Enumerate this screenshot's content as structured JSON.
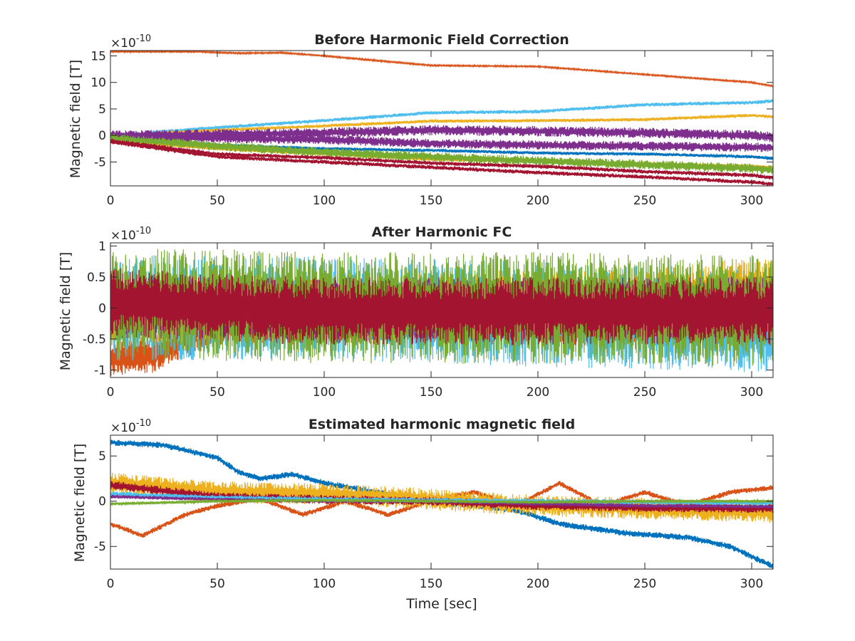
{
  "figure": {
    "colors": [
      "#0072BD",
      "#D95319",
      "#EDB120",
      "#7E2F8E",
      "#77AC30",
      "#4DBEEE",
      "#A2142F"
    ]
  },
  "chart_data": [
    {
      "type": "line",
      "title": "Before Harmonic Field Correction",
      "xlabel": "",
      "ylabel": "Magnetic field [T]",
      "exponent_label": "×10",
      "exponent_power": "-10",
      "xlim": [
        0,
        310
      ],
      "ylim": [
        -9.5,
        16
      ],
      "xticks": [
        0,
        50,
        100,
        150,
        200,
        250,
        300
      ],
      "yticks": [
        -5,
        0,
        5,
        10,
        15
      ],
      "grid": false,
      "series": [
        {
          "color": "#D95319",
          "noise": 0.15,
          "x": [
            0,
            40,
            60,
            80,
            100,
            150,
            200,
            250,
            300,
            310
          ],
          "y": [
            15.8,
            15.8,
            15.5,
            15.6,
            15.0,
            13.2,
            13.0,
            11.5,
            10.0,
            9.3
          ]
        },
        {
          "color": "#4DBEEE",
          "noise": 0.35,
          "x": [
            0,
            50,
            100,
            150,
            200,
            250,
            300,
            310
          ],
          "y": [
            0,
            1.5,
            2.8,
            4.3,
            4.5,
            5.8,
            6.2,
            6.5
          ]
        },
        {
          "color": "#EDB120",
          "noise": 0.3,
          "x": [
            0,
            50,
            100,
            150,
            200,
            250,
            300,
            310
          ],
          "y": [
            0,
            1.0,
            1.8,
            2.7,
            2.8,
            3.0,
            3.8,
            3.5
          ]
        },
        {
          "color": "#7E2F8E",
          "noise": 1.0,
          "x": [
            0,
            50,
            100,
            150,
            200,
            250,
            300,
            310
          ],
          "y": [
            0,
            0.2,
            0.5,
            1.0,
            0.8,
            0.5,
            0.0,
            -0.3
          ]
        },
        {
          "color": "#7E2F8E",
          "noise": 0.9,
          "x": [
            0,
            50,
            100,
            150,
            200,
            250,
            300,
            310
          ],
          "y": [
            -0.5,
            -0.5,
            -0.8,
            -1.5,
            -1.8,
            -2.0,
            -2.2,
            -2.3
          ]
        },
        {
          "color": "#0072BD",
          "noise": 0.3,
          "x": [
            0,
            50,
            100,
            150,
            200,
            250,
            300,
            310
          ],
          "y": [
            -0.5,
            -1.8,
            -2.5,
            -2.8,
            -3.3,
            -3.5,
            -4.0,
            -4.3
          ]
        },
        {
          "color": "#EDB120",
          "noise": 0.3,
          "x": [
            0,
            50,
            100,
            150,
            200,
            250,
            300,
            310
          ],
          "y": [
            -1.0,
            -2.5,
            -3.5,
            -4.5,
            -4.8,
            -5.3,
            -5.8,
            -6.0
          ]
        },
        {
          "color": "#77AC30",
          "noise": 0.9,
          "x": [
            0,
            50,
            100,
            150,
            200,
            250,
            300,
            310
          ],
          "y": [
            -0.5,
            -2.0,
            -3.2,
            -4.0,
            -4.8,
            -5.5,
            -6.2,
            -6.5
          ]
        },
        {
          "color": "#A2142F",
          "noise": 0.4,
          "x": [
            0,
            50,
            100,
            150,
            200,
            250,
            300,
            310
          ],
          "y": [
            -1.0,
            -3.5,
            -4.2,
            -5.2,
            -5.8,
            -6.8,
            -7.5,
            -8.0
          ]
        },
        {
          "color": "#A2142F",
          "noise": 0.4,
          "x": [
            0,
            50,
            100,
            150,
            200,
            250,
            300,
            310
          ],
          "y": [
            -1.2,
            -4.0,
            -5.0,
            -6.0,
            -7.0,
            -7.8,
            -8.8,
            -9.2
          ]
        }
      ]
    },
    {
      "type": "line",
      "title": "After Harmonic FC",
      "xlabel": "",
      "ylabel": "Magnetic field [T]",
      "exponent_label": "×10",
      "exponent_power": "-10",
      "xlim": [
        0,
        310
      ],
      "ylim": [
        -1.12,
        1.05
      ],
      "xticks": [
        0,
        50,
        100,
        150,
        200,
        250,
        300
      ],
      "yticks": [
        -1,
        -0.5,
        0,
        0.5,
        1
      ],
      "ytick_labels": [
        "-1",
        "-0.5",
        "0",
        "0.5",
        "1"
      ],
      "grid": false,
      "series": [
        {
          "color": "#D95319",
          "noise": 0.3,
          "x": [
            0,
            20,
            35,
            50,
            100,
            200,
            310
          ],
          "y": [
            -0.8,
            -0.75,
            -0.5,
            -0.3,
            -0.3,
            -0.3,
            -0.3
          ]
        },
        {
          "color": "#4DBEEE",
          "noise": 0.85,
          "x": [
            0,
            100,
            200,
            310
          ],
          "y": [
            0,
            0,
            -0.1,
            -0.2
          ]
        },
        {
          "color": "#EDB120",
          "noise": 0.55,
          "x": [
            0,
            100,
            250,
            310
          ],
          "y": [
            0,
            0,
            0.1,
            0.3
          ]
        },
        {
          "color": "#7E2F8E",
          "noise": 0.5,
          "x": [
            0,
            100,
            250,
            310
          ],
          "y": [
            0,
            0,
            0,
            0.05
          ]
        },
        {
          "color": "#77AC30",
          "noise": 0.9,
          "x": [
            0,
            50,
            100,
            200,
            310
          ],
          "y": [
            0.05,
            0.05,
            0,
            0,
            -0.05
          ]
        },
        {
          "color": "#A2142F",
          "noise": 0.55,
          "x": [
            0,
            50,
            100,
            200,
            310
          ],
          "y": [
            0.1,
            0.0,
            -0.05,
            -0.05,
            -0.05
          ]
        }
      ]
    },
    {
      "type": "line",
      "title": "Estimated harmonic magnetic field",
      "xlabel": "Time [sec]",
      "ylabel": "Magnetic field [T]",
      "exponent_label": "×10",
      "exponent_power": "-10",
      "xlim": [
        0,
        310
      ],
      "ylim": [
        -7.5,
        7.3
      ],
      "xticks": [
        0,
        50,
        100,
        150,
        200,
        250,
        300
      ],
      "yticks": [
        -5,
        0,
        5
      ],
      "grid": false,
      "series": [
        {
          "color": "#0072BD",
          "noise": 0.35,
          "x": [
            0,
            25,
            50,
            60,
            70,
            85,
            100,
            150,
            190,
            210,
            240,
            270,
            290,
            310
          ],
          "y": [
            6.5,
            6.2,
            4.8,
            3.2,
            2.5,
            3.0,
            2.0,
            0.0,
            -1.0,
            -2.5,
            -3.5,
            -4.0,
            -5.0,
            -7.2
          ]
        },
        {
          "color": "#D95319",
          "noise": 0.3,
          "x": [
            0,
            15,
            35,
            50,
            70,
            90,
            110,
            130,
            150,
            170,
            190,
            210,
            230,
            250,
            270,
            290,
            310
          ],
          "y": [
            -2.5,
            -3.8,
            -1.5,
            -0.5,
            0.3,
            -1.5,
            0.0,
            -1.5,
            0.0,
            1.0,
            -0.5,
            2.0,
            -0.5,
            1.0,
            -0.5,
            1.0,
            1.5
          ]
        },
        {
          "color": "#EDB120",
          "noise": 1.2,
          "x": [
            0,
            50,
            100,
            150,
            200,
            250,
            310
          ],
          "y": [
            2.0,
            1.0,
            0.8,
            0.2,
            -0.5,
            -0.8,
            -1.2
          ]
        },
        {
          "color": "#A2142F",
          "noise": 0.5,
          "x": [
            0,
            50,
            100,
            150,
            200,
            250,
            310
          ],
          "y": [
            1.8,
            0.5,
            0.2,
            0.0,
            -0.5,
            -0.7,
            -0.8
          ]
        },
        {
          "color": "#4DBEEE",
          "noise": 0.3,
          "x": [
            0,
            50,
            100,
            150,
            200,
            250,
            310
          ],
          "y": [
            0.8,
            0.4,
            0.2,
            0.1,
            0.0,
            -0.1,
            -0.2
          ]
        },
        {
          "color": "#7E2F8E",
          "noise": 0.2,
          "x": [
            0,
            50,
            100,
            150,
            200,
            250,
            310
          ],
          "y": [
            0.5,
            0.2,
            0.0,
            0.0,
            -0.3,
            -0.5,
            -0.6
          ]
        },
        {
          "color": "#77AC30",
          "noise": 0.15,
          "x": [
            0,
            50,
            100,
            150,
            200,
            250,
            310
          ],
          "y": [
            -0.3,
            0.0,
            0.1,
            0.0,
            -0.1,
            0.0,
            0.0
          ]
        }
      ]
    }
  ]
}
